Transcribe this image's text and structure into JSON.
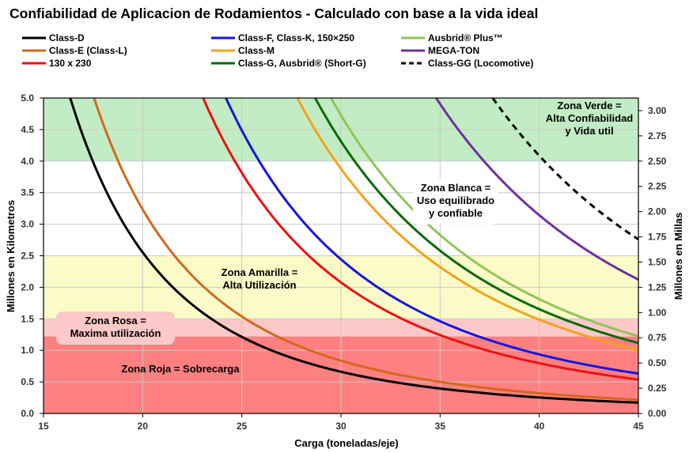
{
  "chart_data": {
    "type": "line",
    "title": "Confiabilidad de Aplicacion de Rodamientos - Calculado con base a la vida ideal",
    "xlabel": "Carga (toneladas/eje)",
    "ylabel": "Millones en Kilometros",
    "y2label": "Millones en Millas",
    "xlim": [
      15,
      45
    ],
    "ylim": [
      0,
      5.0
    ],
    "y2lim": [
      0,
      3.125
    ],
    "x_ticks": [
      "15",
      "20",
      "25",
      "30",
      "35",
      "40",
      "45"
    ],
    "y_ticks": [
      "0.0",
      "0.5",
      "1.0",
      "1.5",
      "2.0",
      "2.5",
      "3.0",
      "3.5",
      "4.0",
      "4.5",
      "5.0"
    ],
    "y2_ticks": [
      "0.00",
      "0.25",
      "0.50",
      "0.75",
      "1.00",
      "1.25",
      "1.50",
      "1.75",
      "2.00",
      "2.25",
      "2.50",
      "2.75",
      "3.00"
    ],
    "grid": true,
    "legend_position": "top",
    "zones": [
      {
        "name": "verde",
        "from": 4.0,
        "to": 5.0,
        "color": "#c2edc4",
        "label": [
          "Zona Verde =",
          "Alta Confiabilidad",
          "y Vida util"
        ]
      },
      {
        "name": "blanca",
        "from": 2.5,
        "to": 4.0,
        "color": "#ffffff",
        "label": [
          "Zona Blanca =",
          "Uso equilibrado",
          "y confiable"
        ]
      },
      {
        "name": "amarilla",
        "from": 1.5,
        "to": 2.5,
        "color": "#fbfbc7",
        "label": [
          "Zona Amarilla =",
          "Alta Utilización"
        ]
      },
      {
        "name": "rosa",
        "from": 1.22,
        "to": 1.5,
        "color": "#fdc8c8",
        "label": [
          "Zona Rosa =",
          "Maxima utilización"
        ]
      },
      {
        "name": "roja",
        "from": 0,
        "to": 1.22,
        "color": "#ff8080",
        "label": [
          "Zona Roja = Sobrecarga"
        ]
      }
    ],
    "series": [
      {
        "name": "Class-D",
        "color": "#000000",
        "dash": false,
        "k": 5.0,
        "x0": 16.35
      },
      {
        "name": "Class-E (Class-L)",
        "color": "#d2691e",
        "dash": false,
        "k": 5.0,
        "x0": 17.55
      },
      {
        "name": "130 x 230",
        "color": "#ee1111",
        "dash": false,
        "k": 5.0,
        "x0": 23.05
      },
      {
        "name": "Class-F, Class-K, 150×250",
        "color": "#1515e0",
        "dash": false,
        "k": 5.0,
        "x0": 24.2
      },
      {
        "name": "Class-M",
        "color": "#f5a21b",
        "dash": false,
        "k": 5.0,
        "x0": 27.8
      },
      {
        "name": "Class-G, Ausbrid® (Short-G)",
        "color": "#0a6a0a",
        "dash": false,
        "k": 5.0,
        "x0": 28.7
      },
      {
        "name": "Ausbrid® Plus™",
        "color": "#92c35a",
        "dash": false,
        "k": 5.0,
        "x0": 29.5
      },
      {
        "name": "MEGA-TON",
        "color": "#7030a0",
        "dash": false,
        "k": 5.0,
        "x0": 34.8
      },
      {
        "name": "Class-GG  (Locomotive)",
        "color": "#000000",
        "dash": true,
        "k": 5.0,
        "x0": 37.65
      }
    ]
  }
}
